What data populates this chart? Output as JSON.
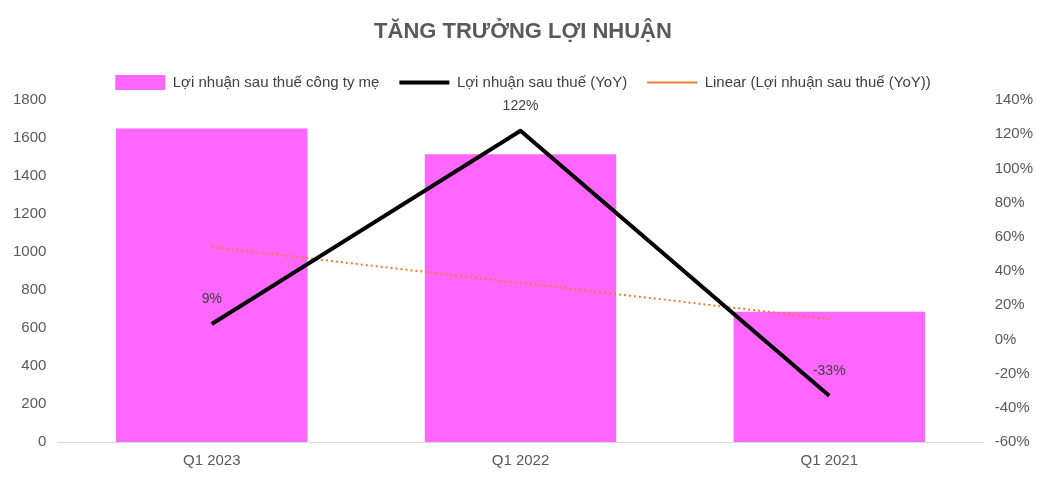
{
  "chart_data": {
    "type": "bar",
    "title": "TĂNG TRƯỞNG LỢI NHUẬN",
    "categories": [
      "Q1 2023",
      "Q1 2022",
      "Q1 2021"
    ],
    "series": [
      {
        "name": "Lợi nhuận sau thuế công ty mẹ",
        "color": "#ff66ff",
        "values": [
          1650,
          1515,
          685
        ]
      },
      {
        "name": "Lợi nhuận sau thuế (YoY)",
        "type": "line",
        "axis": "y2",
        "color": "#000000",
        "values": [
          9,
          122,
          -33
        ],
        "value_labels": [
          "9%",
          "122%",
          "-33%"
        ],
        "marker": "none",
        "line_style": "solid"
      },
      {
        "name": "Linear (Lợi nhuận sau thuế (YoY))",
        "type": "line",
        "axis": "y2",
        "color": "#ed7d31",
        "values": [
          54,
          33,
          12
        ],
        "marker": "none",
        "line_style": "dotted"
      }
    ],
    "ylim": [
      0,
      1800
    ],
    "yticks": [
      0,
      200,
      400,
      600,
      800,
      1000,
      1200,
      1400,
      1600,
      1800
    ],
    "y2lim": [
      -60,
      140
    ],
    "y2ticks": [
      {
        "value": -60,
        "label": "-60%"
      },
      {
        "value": -40,
        "label": "-40%"
      },
      {
        "value": -20,
        "label": "-20%"
      },
      {
        "value": 0,
        "label": "0%"
      },
      {
        "value": 20,
        "label": "20%"
      },
      {
        "value": 40,
        "label": "40%"
      },
      {
        "value": 60,
        "label": "60%"
      },
      {
        "value": 80,
        "label": "80%"
      },
      {
        "value": 100,
        "label": "100%"
      },
      {
        "value": 120,
        "label": "120%"
      },
      {
        "value": 140,
        "label": "140%"
      }
    ],
    "legend": "top"
  }
}
